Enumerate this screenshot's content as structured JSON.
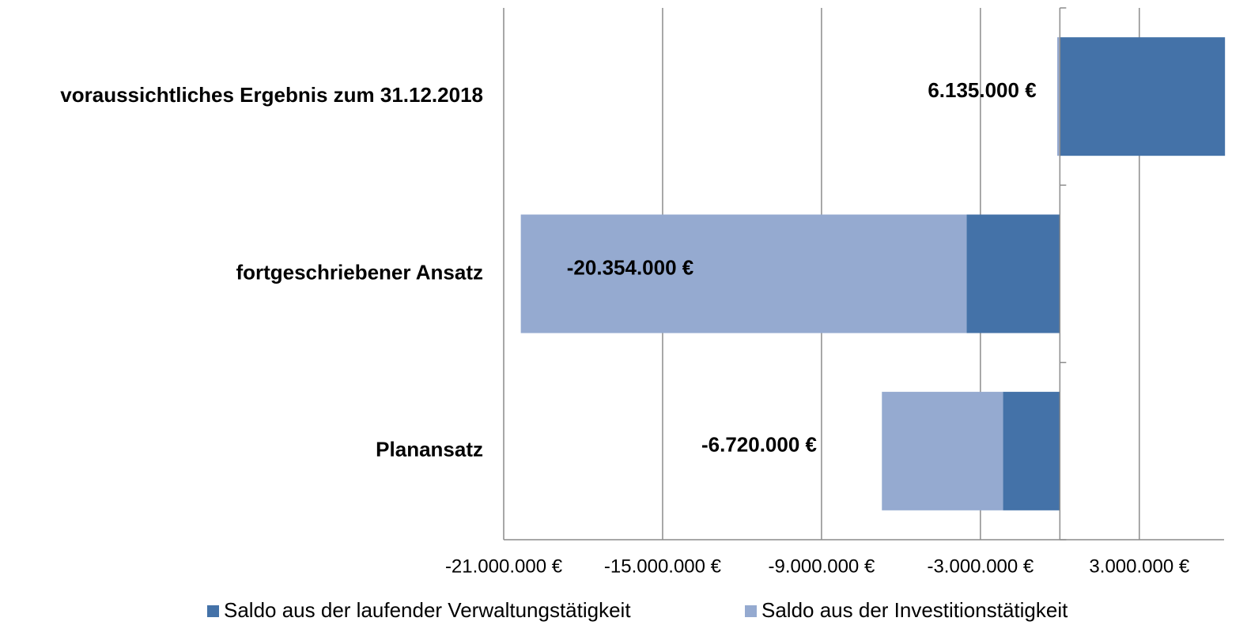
{
  "chart_data": {
    "type": "stacked-bar-horizontal",
    "categories": [
      "voraussichtliches Ergebnis zum 31.12.2018",
      "fortgeschriebener Ansatz",
      "Planansatz"
    ],
    "series": [
      {
        "name": "Saldo aus der laufender Verwaltungstätigkeit",
        "color": "#4472a8",
        "values": [
          6235000,
          -3520000,
          -2150000
        ]
      },
      {
        "name": "Saldo aus der Investitionstätigkeit",
        "color": "#95aad0",
        "values": [
          -100000,
          -16834000,
          -4570000
        ]
      }
    ],
    "totals": [
      6135000,
      -20354000,
      -6720000
    ],
    "total_labels": [
      "6.135.000 €",
      "-20.354.000 €",
      "-6.720.000 €"
    ],
    "xlim": [
      -21000000,
      6200000
    ],
    "xticks": [
      {
        "value": -21000000,
        "label": "-21.000.000 €"
      },
      {
        "value": -15000000,
        "label": "-15.000.000 €"
      },
      {
        "value": -9000000,
        "label": "-9.000.000 €"
      },
      {
        "value": -3000000,
        "label": "-3.000.000 €"
      },
      {
        "value": 3000000,
        "label": "3.000.000 €"
      }
    ],
    "grid": true,
    "legend": "bottom"
  }
}
